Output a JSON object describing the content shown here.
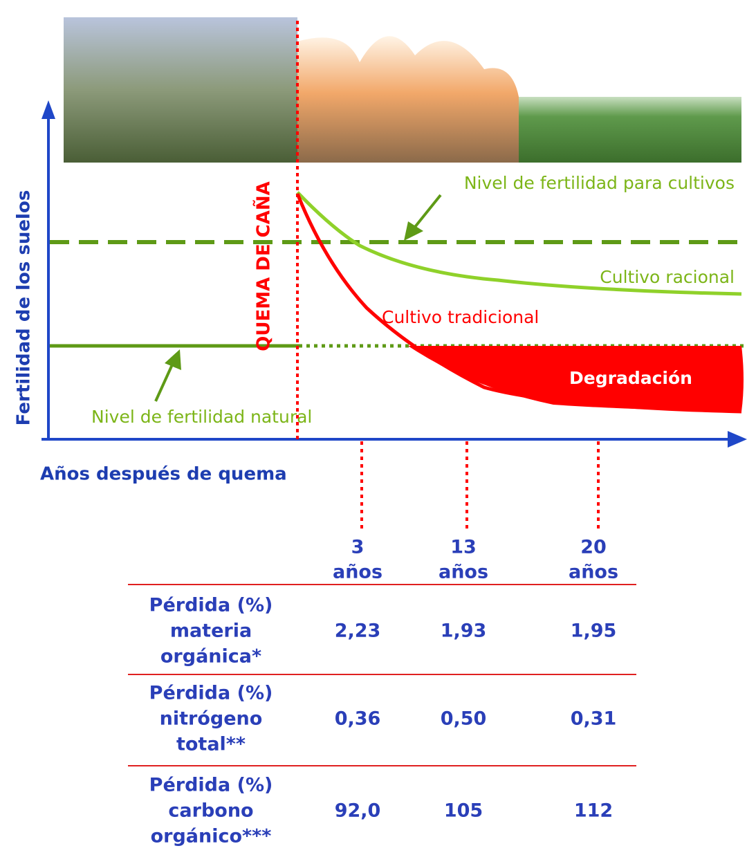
{
  "diagram": {
    "y_axis_label": "Fertilidad de los suelos",
    "x_axis_label": "Años después de quema",
    "burn_label": "QUEMA DE CAÑA",
    "crop_level_label": "Nivel de fertilidad para cultivos",
    "rational_label": "Cultivo racional",
    "traditional_label": "Cultivo tradicional",
    "degradation_label": "Degradación",
    "natural_level_label": "Nivel de fertilidad natural"
  },
  "table": {
    "columns": [
      {
        "years": "3",
        "unit": "años"
      },
      {
        "years": "13",
        "unit": "años"
      },
      {
        "years": "20",
        "unit": "años"
      }
    ],
    "rows": [
      {
        "label": [
          "Pérdida (%)",
          "materia",
          "orgánica*"
        ],
        "values": [
          "2,23",
          "1,93",
          "1,95"
        ]
      },
      {
        "label": [
          "Pérdida (%)",
          "nitrógeno",
          "total**"
        ],
        "values": [
          "0,36",
          "0,50",
          "0,31"
        ]
      },
      {
        "label": [
          "Pérdida (%)",
          "carbono",
          "orgánico***"
        ],
        "values": [
          "92,0",
          "105",
          "112"
        ]
      }
    ]
  }
}
